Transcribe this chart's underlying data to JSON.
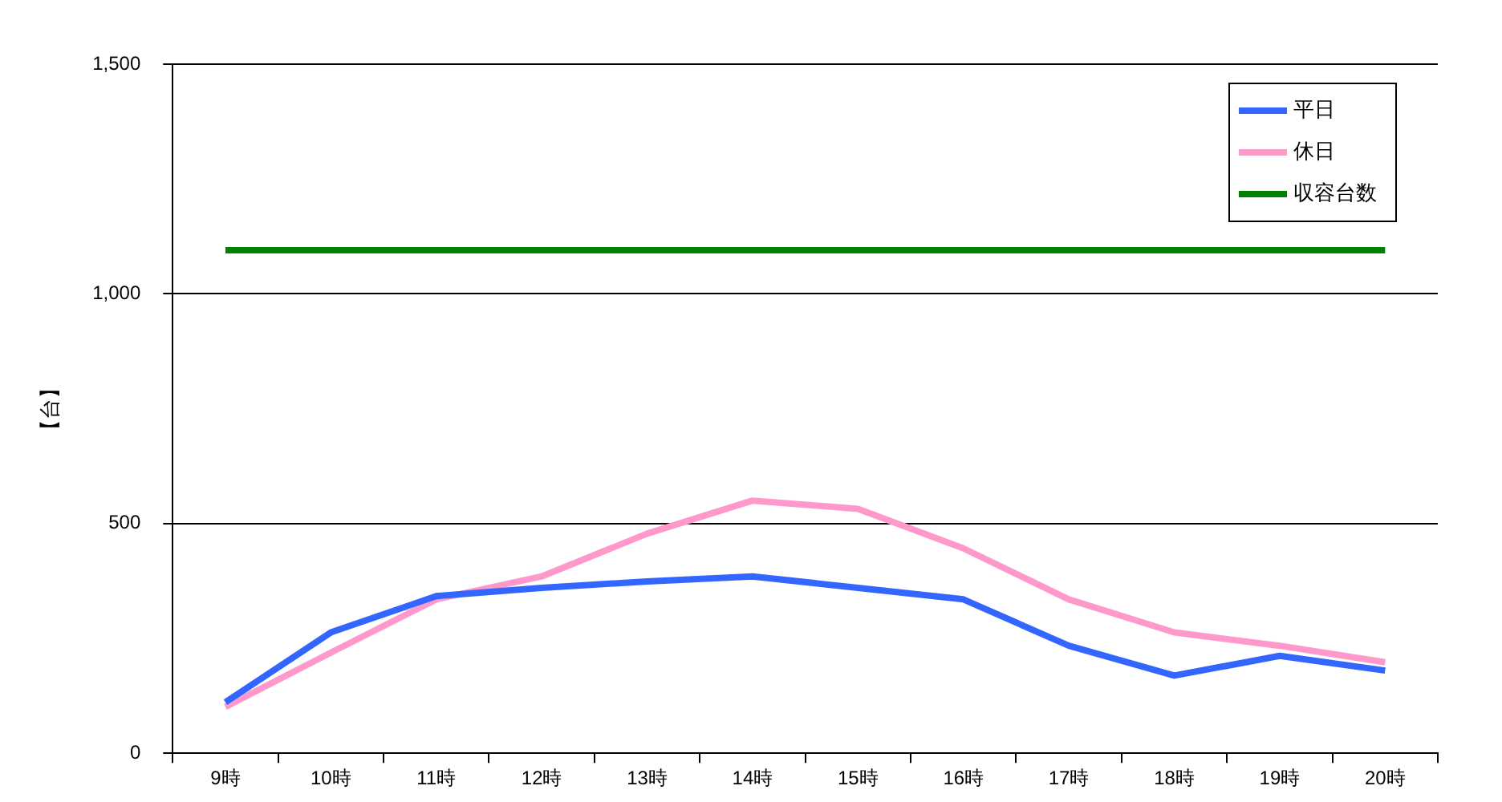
{
  "chart_data": {
    "type": "line",
    "ylabel": "【台】",
    "categories": [
      "9時",
      "10時",
      "11時",
      "12時",
      "13時",
      "14時",
      "15時",
      "16時",
      "17時",
      "18時",
      "19時",
      "20時"
    ],
    "series": [
      {
        "name": "平日",
        "color": "#3366ff",
        "values": [
          111,
          263,
          342,
          360,
          374,
          385,
          360,
          335,
          234,
          169,
          212,
          180
        ]
      },
      {
        "name": "休日",
        "color": "#ff99cc",
        "values": [
          101,
          219,
          335,
          385,
          478,
          550,
          532,
          446,
          335,
          263,
          234,
          198
        ]
      },
      {
        "name": "収容台数",
        "color": "#008000",
        "values": [
          1095,
          1095,
          1095,
          1095,
          1095,
          1095,
          1095,
          1095,
          1095,
          1095,
          1095,
          1095
        ]
      }
    ],
    "ylim": [
      0,
      1500
    ],
    "yticks": [
      {
        "value": 0,
        "label": "0"
      },
      {
        "value": 500,
        "label": "500"
      },
      {
        "value": 1000,
        "label": "1,000"
      },
      {
        "value": 1500,
        "label": "1,500"
      }
    ],
    "grid": "y",
    "legend": "top right",
    "marker": "none",
    "line_style": "solid"
  }
}
